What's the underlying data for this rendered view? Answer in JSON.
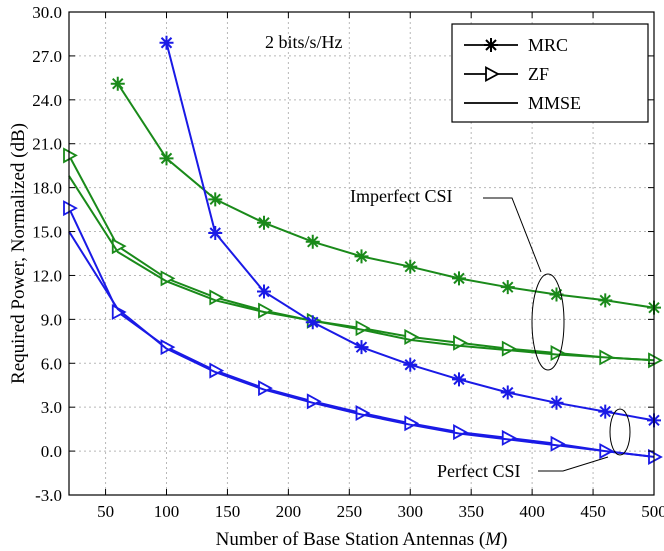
{
  "chart_data": {
    "type": "line",
    "xlabel": "Number of Base Station Antennas (",
    "xlabel_var": "M",
    "xlabel_end": ")",
    "ylabel": "Required Power, Normalized (dB)",
    "xlim": [
      20,
      500
    ],
    "ylim": [
      -3,
      30
    ],
    "x_ticks": [
      50,
      100,
      150,
      200,
      250,
      300,
      350,
      400,
      450,
      500
    ],
    "y_ticks": [
      -3,
      0,
      3,
      6,
      9,
      12,
      15,
      18,
      21,
      24,
      27,
      30
    ],
    "y_tick_labels": [
      "-3.0",
      "0.0",
      "3.0",
      "6.0",
      "9.0",
      "12.0",
      "15.0",
      "18.0",
      "21.0",
      "24.0",
      "27.0",
      "30.0"
    ],
    "grid": true,
    "legend_placement": "top-right",
    "legend": [
      {
        "label": "MRC",
        "marker": "star"
      },
      {
        "label": "ZF",
        "marker": "triangle-right"
      },
      {
        "label": "MMSE",
        "marker": "none"
      }
    ],
    "annotations": {
      "rate": "2 bits/s/Hz",
      "imperfect": "Imperfect CSI",
      "perfect": "Perfect CSI"
    },
    "colors": {
      "imperfect": "#1a8a1a",
      "perfect": "#1a1ae6"
    },
    "series": [
      {
        "group": "imperfect",
        "method": "MRC",
        "marker": "star",
        "x": [
          60,
          100,
          140,
          180,
          220,
          260,
          300,
          340,
          380,
          420,
          460,
          500
        ],
        "y": [
          25.1,
          20.0,
          17.2,
          15.6,
          14.3,
          13.3,
          12.6,
          11.8,
          11.2,
          10.7,
          10.3,
          9.8
        ]
      },
      {
        "group": "imperfect",
        "method": "ZF",
        "marker": "triangle-right",
        "x": [
          20,
          60,
          100,
          140,
          180,
          220,
          260,
          300,
          340,
          380,
          420,
          460,
          500
        ],
        "y": [
          20.2,
          14.0,
          11.8,
          10.5,
          9.6,
          8.9,
          8.4,
          7.8,
          7.4,
          7.0,
          6.7,
          6.4,
          6.2
        ]
      },
      {
        "group": "imperfect",
        "method": "MMSE",
        "marker": "none",
        "x": [
          20,
          60,
          100,
          140,
          180,
          220,
          260,
          300,
          340,
          380,
          420,
          460,
          500
        ],
        "y": [
          18.8,
          13.6,
          11.6,
          10.3,
          9.5,
          8.9,
          8.3,
          7.6,
          7.2,
          6.9,
          6.6,
          6.4,
          6.2
        ]
      },
      {
        "group": "perfect",
        "method": "MRC",
        "marker": "star",
        "x": [
          100,
          140,
          180,
          220,
          260,
          300,
          340,
          380,
          420,
          460,
          500
        ],
        "y": [
          27.9,
          14.9,
          10.9,
          8.8,
          7.1,
          5.9,
          4.9,
          4.0,
          3.3,
          2.7,
          2.1
        ]
      },
      {
        "group": "perfect",
        "method": "ZF",
        "marker": "triangle-right",
        "x": [
          20,
          60,
          100,
          140,
          180,
          220,
          260,
          300,
          340,
          380,
          420,
          460,
          500
        ],
        "y": [
          16.6,
          9.5,
          7.1,
          5.5,
          4.3,
          3.4,
          2.6,
          1.9,
          1.3,
          0.9,
          0.5,
          0.0,
          -0.4
        ]
      },
      {
        "group": "perfect",
        "method": "MMSE",
        "marker": "none",
        "x": [
          20,
          60,
          100,
          140,
          180,
          220,
          260,
          300,
          340,
          380,
          420,
          460,
          500
        ],
        "y": [
          15.0,
          9.7,
          7.0,
          5.4,
          4.2,
          3.3,
          2.5,
          1.8,
          1.2,
          0.8,
          0.4,
          0.0,
          -0.4
        ]
      }
    ]
  }
}
